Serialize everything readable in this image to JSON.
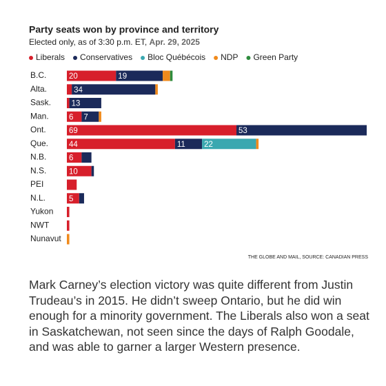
{
  "chart_data": {
    "type": "stacked_bar_horizontal",
    "title": "Party seats won by province and territory",
    "subtitle": "Elected only, as of 3:30 p.m. ET,",
    "subtitle_date": "Apr. 29, 2025",
    "source": "THE GLOBE AND MAIL, SOURCE: CANADIAN PRESS",
    "categories": [
      "B.C.",
      "Alta.",
      "Sask.",
      "Man.",
      "Ont.",
      "Que.",
      "N.B.",
      "N.S.",
      "PEI",
      "N.L.",
      "Yukon",
      "NWT",
      "Nunavut"
    ],
    "series": [
      {
        "name": "Liberals",
        "color": "#d71f2b",
        "values": [
          20,
          2,
          1,
          6,
          69,
          44,
          6,
          10,
          4,
          5,
          1,
          1,
          0
        ]
      },
      {
        "name": "Conservatives",
        "color": "#1b2a5a",
        "values": [
          19,
          34,
          13,
          7,
          53,
          11,
          4,
          1,
          0,
          2,
          0,
          0,
          0
        ]
      },
      {
        "name": "Bloc Québécois",
        "color": "#3aa8b0",
        "values": [
          0,
          0,
          0,
          0,
          0,
          22,
          0,
          0,
          0,
          0,
          0,
          0,
          0
        ]
      },
      {
        "name": "NDP",
        "color": "#f08a1c",
        "values": [
          3,
          1,
          0,
          1,
          0,
          1,
          0,
          0,
          0,
          0,
          0,
          0,
          1
        ]
      },
      {
        "name": "Green Party",
        "color": "#2e8b3d",
        "values": [
          1,
          0,
          0,
          0,
          0,
          0,
          0,
          0,
          0,
          0,
          0,
          0,
          0
        ]
      }
    ]
  },
  "caption": "Mark Carney’s election victory was quite different from Justin Trudeau’s in 2015. He didn’t sweep Ontario, but he did win enough for a minority government. The Liberals also won a seat in Saskatchewan, not seen since the days of Ralph Goodale, and was able to garner a larger Western presence."
}
